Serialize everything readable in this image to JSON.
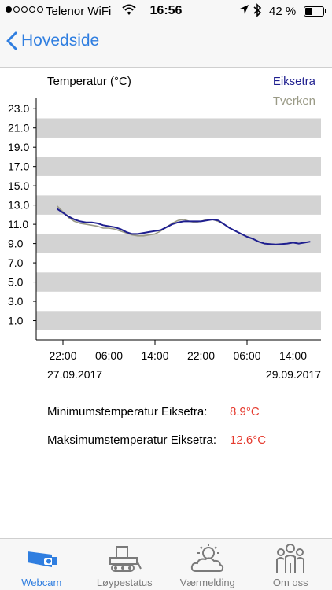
{
  "status_bar": {
    "carrier": "Telenor WiFi",
    "time": "16:56",
    "battery_text": "42 %",
    "battery_level": 0.42
  },
  "nav": {
    "back_label": "Hovedside"
  },
  "chart_data": {
    "type": "line",
    "title": "Temperatur (°C)",
    "ylabel": "Temperatur (°C)",
    "xlabel": "",
    "ylim": [
      -1,
      24
    ],
    "y_ticks": [
      "23.0",
      "21.0",
      "19.0",
      "17.0",
      "15.0",
      "13.0",
      "11.0",
      "9.0",
      "7.0",
      "5.0",
      "3.0",
      "1.0"
    ],
    "x_ticks": [
      "22:00",
      "06:00",
      "14:00",
      "22:00",
      "06:00",
      "14:00"
    ],
    "date_labels": [
      "27.09.2017",
      "29.09.2017"
    ],
    "legend_position": "top-right",
    "grid": "alternating horizontal bands",
    "series": [
      {
        "name": "Eiksetra",
        "color": "#1f1f8f",
        "x": [
          "27.09 21:00",
          "27.09 22:00",
          "27.09 23:00",
          "28.09 00:00",
          "28.09 01:00",
          "28.09 02:00",
          "28.09 03:00",
          "28.09 04:00",
          "28.09 05:00",
          "28.09 06:00",
          "28.09 07:00",
          "28.09 08:00",
          "28.09 09:00",
          "28.09 10:00",
          "28.09 11:00",
          "28.09 12:00",
          "28.09 13:00",
          "28.09 14:00",
          "28.09 15:00",
          "28.09 16:00",
          "28.09 17:00",
          "28.09 18:00",
          "28.09 19:00",
          "28.09 20:00",
          "28.09 21:00",
          "28.09 22:00",
          "28.09 23:00",
          "29.09 00:00",
          "29.09 01:00",
          "29.09 02:00",
          "29.09 03:00",
          "29.09 04:00",
          "29.09 05:00",
          "29.09 06:00",
          "29.09 07:00",
          "29.09 08:00",
          "29.09 09:00",
          "29.09 10:00",
          "29.09 11:00",
          "29.09 12:00",
          "29.09 13:00",
          "29.09 14:00",
          "29.09 15:00",
          "29.09 16:00",
          "29.09 17:00"
        ],
        "values": [
          12.6,
          12.2,
          11.8,
          11.5,
          11.3,
          11.2,
          11.2,
          11.1,
          10.9,
          10.8,
          10.7,
          10.5,
          10.2,
          10.0,
          10.0,
          10.1,
          10.2,
          10.3,
          10.4,
          10.7,
          11.0,
          11.2,
          11.3,
          11.3,
          11.3,
          11.3,
          11.4,
          11.5,
          11.4,
          11.0,
          10.6,
          10.3,
          10.0,
          9.7,
          9.5,
          9.2,
          9.0,
          8.95,
          8.9,
          8.95,
          9.0,
          9.1,
          9.0,
          9.1,
          9.2
        ]
      },
      {
        "name": "Tverken",
        "color": "#9a9a86",
        "x": [
          "27.09 21:00",
          "27.09 22:00",
          "27.09 23:00",
          "28.09 00:00",
          "28.09 01:00",
          "28.09 02:00",
          "28.09 03:00",
          "28.09 04:00",
          "28.09 05:00",
          "28.09 06:00",
          "28.09 07:00",
          "28.09 08:00",
          "28.09 09:00",
          "28.09 10:00",
          "28.09 11:00",
          "28.09 12:00",
          "28.09 13:00",
          "28.09 14:00",
          "28.09 15:00",
          "28.09 16:00",
          "28.09 17:00",
          "28.09 18:00",
          "28.09 19:00",
          "28.09 20:00",
          "28.09 21:00",
          "28.09 22:00",
          "28.09 23:00",
          "29.09 00:00",
          "29.09 01:00",
          "29.09 02:00"
        ],
        "values": [
          12.9,
          12.3,
          11.7,
          11.3,
          11.1,
          11.0,
          10.9,
          10.8,
          10.6,
          10.6,
          10.5,
          10.3,
          10.1,
          9.9,
          9.8,
          9.8,
          9.9,
          10.0,
          10.3,
          10.7,
          11.1,
          11.4,
          11.5,
          11.3,
          11.2,
          11.3,
          11.5,
          11.5,
          11.3,
          11.0
        ]
      }
    ]
  },
  "stats": {
    "min_label": "Minimumstemperatur Eiksetra:",
    "min_value": "8.9°C",
    "max_label": "Maksimumstemperatur Eiksetra:",
    "max_value": "12.6°C"
  },
  "tabs": [
    {
      "label": "Webcam",
      "icon": "webcam-icon",
      "active": true
    },
    {
      "label": "Løypestatus",
      "icon": "snowcat-icon",
      "active": false
    },
    {
      "label": "Værmelding",
      "icon": "weather-icon",
      "active": false
    },
    {
      "label": "Om oss",
      "icon": "people-icon",
      "active": false
    }
  ],
  "colors": {
    "accent": "#2f7ee0",
    "stat_value": "#e53a2e",
    "band": "#d3d3d3"
  }
}
